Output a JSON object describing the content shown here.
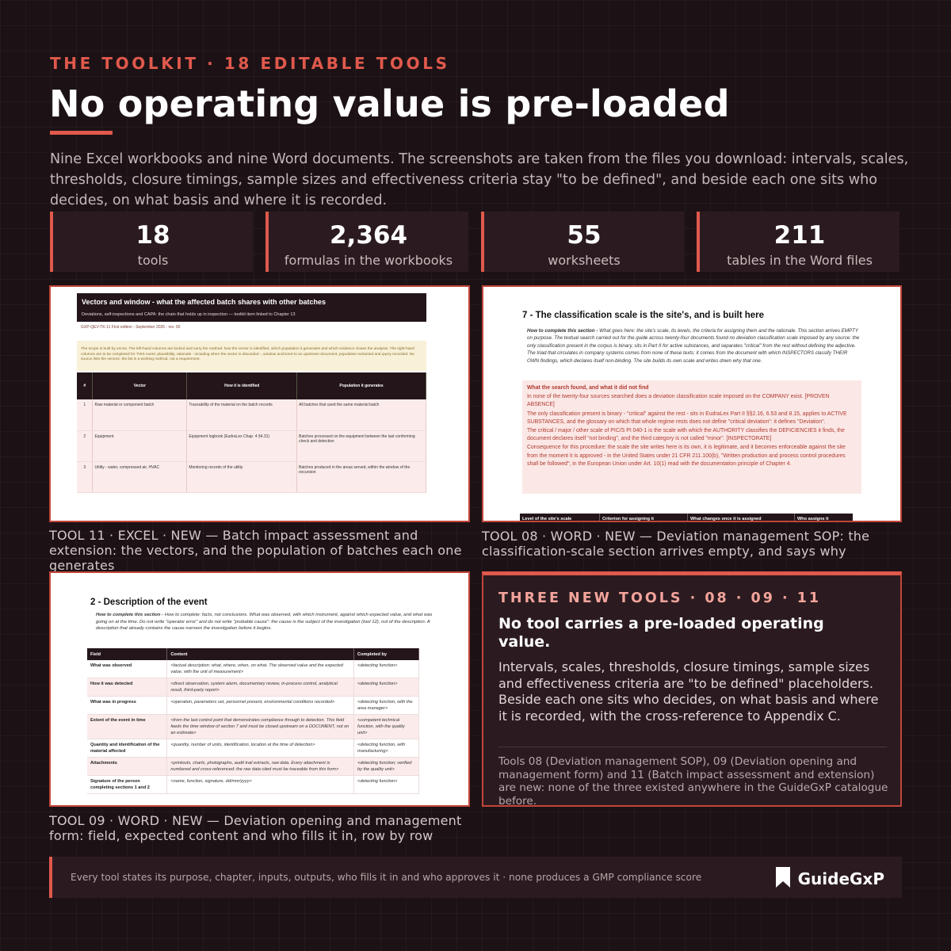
{
  "header": {
    "kicker": "THE TOOLKIT  ·  18 EDITABLE TOOLS",
    "title": "No operating value is pre-loaded",
    "intro": "Nine Excel workbooks and nine Word documents. The screenshots are taken from the files you download: intervals, scales, thresholds, closure timings, sample sizes and effectiveness criteria stay \"to be defined\", and beside each one sits who decides, on what basis and where it is recorded."
  },
  "stats": [
    {
      "value": "18",
      "label": "tools"
    },
    {
      "value": "2,364",
      "label": "formulas in the workbooks"
    },
    {
      "value": "55",
      "label": "worksheets"
    },
    {
      "value": "211",
      "label": "tables in the Word files"
    }
  ],
  "excel_shot": {
    "title": "Vectors and window - what the affected batch shares with other batches",
    "subtitle": "Deviations, self-inspections and CAPA: the chain that holds up in inspection — toolkit item linked to Chapter 13",
    "meta": "GXP-QEV-TK-11  First edition - September 2026 - rev. 00",
    "note": "The scope is built by vector. The left-hand columns are locked and carry the method: how the vector is identified, which population it generates and which evidence closes the analysis. The right-hand columns are to be completed for THIS event: plausibility, rationale - including when the vector is discarded -, window anchored to an upstream document, population extracted and query recorded. No source lists the vectors: the list is a working method, not a requirement.",
    "columns": [
      "#",
      "Vector",
      "How it is identified",
      "Population it generates"
    ],
    "rows": [
      {
        "n": "1",
        "vector": "Raw material or component batch",
        "how": "Traceability of the material on the batch records",
        "population": "All batches that used the same material batch"
      },
      {
        "n": "2",
        "vector": "Equipment",
        "how": "Equipment logbook (EudraLex Chap. 4 §4.31)",
        "population": "Batches processed on the equipment between the last conforming check and detection"
      },
      {
        "n": "3",
        "vector": "Utility - water, compressed air, HVAC",
        "how": "Monitoring records of the utility",
        "population": "Batches produced in the areas served, within the window of the excursion"
      }
    ],
    "caption": "TOOL 11 · EXCEL · NEW — Batch impact assessment and extension: the vectors, and the population of batches each one generates"
  },
  "sop_shot": {
    "heading": "7 - The classification scale is the site's, and is built here",
    "how_label": "How to complete this section -",
    "how": " What goes here: the site's scale, its levels, the criteria for assigning them and the rationale. This section arrives EMPTY on purpose. The textual search carried out for the guide across twenty-four documents found no deviation classification scale imposed by any source: the only classification present in the corpus is binary, sits in Part II for active substances, and separates \"critical\" from the rest without defining the adjective. The triad that circulates in company systems comes from none of these texts: it comes from the document with which INSPECTORS classify THEIR OWN findings, which declares itself non-binding. The site builds its own scale and writes down why that one.",
    "box_title": "What the search found, and what it did not find",
    "box_paragraphs": [
      "In none of the twenty-four sources searched does a deviation classification scale imposed on the COMPANY exist. [PROVEN ABSENCE]",
      "The only classification present is binary - \"critical\" against the rest - sits in EudraLex Part II §§2.16, 6.53 and 8.15, applies to ACTIVE SUBSTANCES, and the glossary on which that whole regime rests does not define \"critical deviation\": it defines \"Deviation\".",
      "The critical / major / other scale of PIC/S PI 040-1 is the scale with which the AUTHORITY classifies the DEFICIENCIES it finds, the document declares itself \"not binding\", and the third category is not called \"minor\". [INSPECTORATE]",
      "Consequence for this procedure: the scale the site writes here is its own, it is legitimate, and it becomes enforceable against the site from the moment it is approved - in the United States under 21 CFR 211.100(b), \"Written production and process control procedures shall be followed\"; in the European Union under Art. 10(1) read with the documentation principle of Chapter 4."
    ],
    "columns": [
      "Level of the site's scale",
      "Criterion for assigning it",
      "What changes once it is assigned",
      "Who assigns it"
    ],
    "caption": "TOOL 08 · WORD · NEW — Deviation management SOP: the classification-scale section arrives empty, and says why"
  },
  "form_shot": {
    "heading": "2 - Description of the event",
    "how_label": "How to complete this section -",
    "how": " How to complete: facts, not conclusions. What was observed, with which instrument, against which expected value, and what was going on at the time. Do not write \"operator error\" and do not write \"probable cause\": the cause is the subject of the investigation (tool 12), not of the description. A description that already contains the cause narrows the investigation before it begins.",
    "columns": [
      "Field",
      "Content",
      "Completed by"
    ],
    "rows": [
      {
        "field": "What was observed",
        "content": "<factual description: what, where, when, on what. The observed value and the expected value, with the unit of measurement>",
        "by": "<detecting function>"
      },
      {
        "field": "How it was detected",
        "content": "<direct observation, system alarm, documentary review, in-process control, analytical result, third-party report>",
        "by": "<detecting function>"
      },
      {
        "field": "What was in progress",
        "content": "<operation, parameters set, personnel present, environmental conditions recorded>",
        "by": "<detecting function, with the area manager>"
      },
      {
        "field": "Extent of the event in time",
        "content": "<from the last control point that demonstrates compliance through to detection. This field feeds the time window of section 7 and must be closed upstream on a DOCUMENT, not on an estimate>",
        "by": "<competent technical function, with the quality unit>"
      },
      {
        "field": "Quantity and identification of the material affected",
        "content": "<quantity, number of units, identification, location at the time of detection>",
        "by": "<detecting function, with manufacturing>"
      },
      {
        "field": "Attachments",
        "content": "<printouts, charts, photographs, audit trail extracts, raw data. Every attachment is numbered and cross-referenced: the raw data cited must be traceable from this form>",
        "by": "<detecting function; verified by the quality unit>"
      },
      {
        "field": "Signature of the person completing sections 1 and 2",
        "content": "<name, function, signature, dd/mm/yyyy>",
        "by": "<detecting function>"
      }
    ],
    "caption": "TOOL 09 · WORD · NEW — Deviation opening and management form: field, expected content and who fills it in, row by row"
  },
  "callout": {
    "kicker": "THREE NEW TOOLS  ·  08 · 09 · 11",
    "title": "No tool carries a pre-loaded operating value.",
    "body": "Intervals, scales, thresholds, closure timings, sample sizes and effectiveness criteria are \"to be defined\" placeholders. Beside each one sits who decides, on what basis and where it is recorded, with the cross-reference to Appendix C.",
    "foot": "Tools 08 (Deviation management SOP), 09 (Deviation opening and management form) and 11 (Batch impact assessment and extension) are new: none of the three existed anywhere in the GuideGxP catalogue before."
  },
  "footer": {
    "text": "Every tool states its purpose, chapter, inputs, outputs, who fills it in and who approves it  ·  none produces a GMP compliance score",
    "brand": "GuideGxP",
    "brand_icon": "bookmark-icon"
  },
  "colors": {
    "accent": "#e0594c",
    "background": "#1c1216",
    "panel": "#2b1b20",
    "border": "#c2453b"
  }
}
